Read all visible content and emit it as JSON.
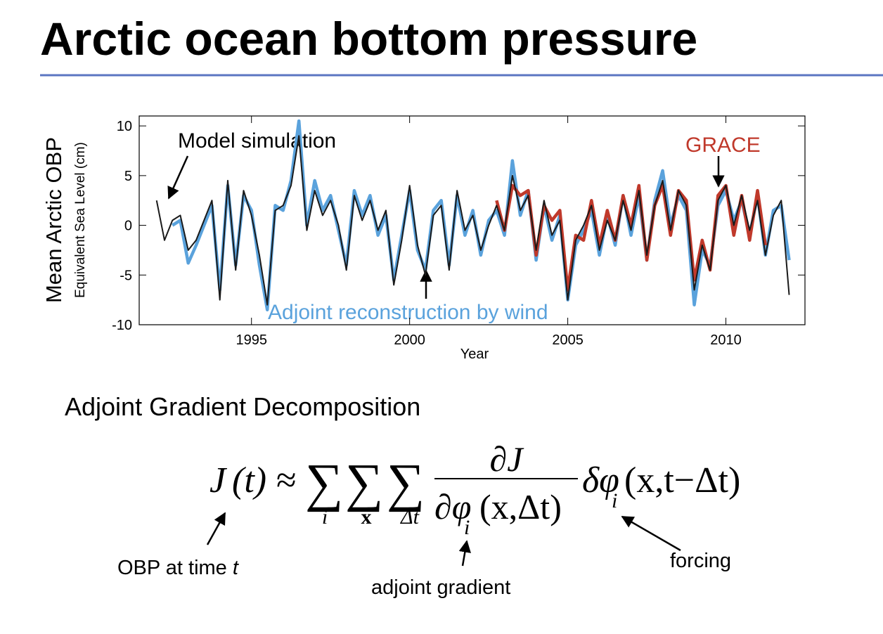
{
  "slide": {
    "title": "Arctic ocean bottom pressure",
    "subtitle": "Adjoint Gradient Decomposition",
    "equation": {
      "lhs": "J",
      "lhs_arg": "(t)",
      "approx": "≈",
      "sum": "∑",
      "sub_1": "i",
      "sub_2": "x",
      "sub_3": "Δt",
      "numerator": "∂J",
      "denominator": "∂φ",
      "denominator_sub": "i",
      "denominator_arg": "(x,Δt)",
      "forcing": "δφ",
      "forcing_sub": "i",
      "forcing_arg": "(x,t−Δt)"
    },
    "labels": {
      "obp": "OBP at time",
      "obp_t": "t",
      "gradient": "adjoint gradient",
      "forcing": "forcing"
    }
  },
  "chart_data": {
    "type": "line",
    "y_label": "Mean Arctic OBP",
    "y_sublabel": "Equivalent Sea Level (cm)",
    "x_label": "Year",
    "annotations": [
      "Model simulation",
      "GRACE",
      "Adjoint reconstruction by wind"
    ],
    "xlim": [
      1991.45,
      2012.5
    ],
    "xticks": [
      1995,
      2000,
      2005,
      2010
    ],
    "ylim": [
      -10,
      11
    ],
    "yticks": [
      -10,
      -5,
      0,
      5,
      10
    ],
    "x": [
      1992.0,
      1992.25,
      1992.5,
      1992.75,
      1993.0,
      1993.25,
      1993.5,
      1993.75,
      1994.0,
      1994.25,
      1994.5,
      1994.75,
      1995.0,
      1995.25,
      1995.5,
      1995.75,
      1996.0,
      1996.25,
      1996.5,
      1996.75,
      1997.0,
      1997.25,
      1997.5,
      1997.75,
      1998.0,
      1998.25,
      1998.5,
      1998.75,
      1999.0,
      1999.25,
      1999.5,
      1999.75,
      2000.0,
      2000.25,
      2000.5,
      2000.75,
      2001.0,
      2001.25,
      2001.5,
      2001.75,
      2002.0,
      2002.25,
      2002.5,
      2002.75,
      2003.0,
      2003.25,
      2003.5,
      2003.75,
      2004.0,
      2004.25,
      2004.5,
      2004.75,
      2005.0,
      2005.25,
      2005.5,
      2005.75,
      2006.0,
      2006.25,
      2006.5,
      2006.75,
      2007.0,
      2007.25,
      2007.5,
      2007.75,
      2008.0,
      2008.25,
      2008.5,
      2008.75,
      2009.0,
      2009.25,
      2009.5,
      2009.75,
      2010.0,
      2010.25,
      2010.5,
      2010.75,
      2011.0,
      2011.25,
      2011.5,
      2011.75,
      2012.0
    ],
    "series": [
      {
        "color": "#5aa2dc",
        "width": 4.5,
        "values": [
          null,
          null,
          0.0,
          0.5,
          -3.8,
          -2.0,
          0.0,
          2.0,
          -6.5,
          4.0,
          -4.0,
          3.0,
          1.5,
          -4.0,
          -8.5,
          2.0,
          1.5,
          4.5,
          10.5,
          0.0,
          4.5,
          1.5,
          3.0,
          -0.5,
          -4.0,
          3.5,
          1.0,
          3.0,
          -1.0,
          1.0,
          -5.5,
          -1.0,
          3.5,
          -2.5,
          -4.5,
          1.5,
          2.5,
          -4.0,
          3.0,
          -1.0,
          1.5,
          -3.0,
          0.5,
          1.5,
          -1.0,
          6.5,
          1.0,
          3.5,
          -3.5,
          2.0,
          -1.5,
          1.0,
          -7.5,
          -2.0,
          -0.5,
          1.5,
          -3.0,
          1.0,
          -2.0,
          3.0,
          -1.0,
          3.0,
          -3.5,
          2.5,
          5.5,
          0.0,
          3.0,
          1.5,
          -8.0,
          -2.5,
          -4.0,
          2.0,
          3.5,
          0.5,
          2.5,
          -1.0,
          3.0,
          -3.0,
          1.5,
          2.0,
          -3.5
        ]
      },
      {
        "color": "#c0392b",
        "width": 4.5,
        "values": [
          null,
          null,
          null,
          null,
          null,
          null,
          null,
          null,
          null,
          null,
          null,
          null,
          null,
          null,
          null,
          null,
          null,
          null,
          null,
          null,
          null,
          null,
          null,
          null,
          null,
          null,
          null,
          null,
          null,
          null,
          null,
          null,
          null,
          null,
          null,
          null,
          null,
          null,
          null,
          null,
          null,
          null,
          null,
          2.5,
          -0.5,
          4.0,
          3.0,
          3.5,
          -3.0,
          2.0,
          0.5,
          1.5,
          -6.5,
          -1.0,
          -1.5,
          2.5,
          -2.0,
          1.5,
          -1.5,
          3.0,
          0.0,
          4.0,
          -3.5,
          2.0,
          4.0,
          -1.0,
          3.5,
          2.5,
          -5.5,
          -1.5,
          -4.5,
          3.0,
          4.0,
          -1.0,
          3.0,
          -1.5,
          3.5,
          -2.0,
          null,
          null,
          null
        ]
      },
      {
        "color": "#1a1a1a",
        "width": 2,
        "values": [
          2.5,
          -1.5,
          0.5,
          1.0,
          -2.5,
          -1.5,
          0.5,
          2.5,
          -7.5,
          4.5,
          -4.5,
          3.5,
          1.0,
          -3.0,
          -8.0,
          1.5,
          2.0,
          4.0,
          9.0,
          -0.5,
          3.5,
          1.0,
          2.5,
          0.0,
          -4.5,
          3.0,
          0.5,
          2.5,
          -0.5,
          1.5,
          -6.0,
          -1.5,
          4.0,
          -2.0,
          -5.0,
          1.0,
          2.0,
          -4.5,
          3.5,
          -0.5,
          1.0,
          -2.5,
          0.0,
          2.0,
          -0.5,
          5.0,
          1.5,
          3.0,
          -2.5,
          2.5,
          -1.0,
          0.5,
          -7.5,
          -1.5,
          0.0,
          2.0,
          -2.5,
          0.5,
          -1.5,
          2.5,
          -0.5,
          3.5,
          -3.0,
          2.0,
          4.5,
          -0.5,
          3.5,
          2.0,
          -6.5,
          -2.0,
          -4.5,
          2.5,
          4.0,
          0.0,
          3.0,
          -0.5,
          2.5,
          -3.0,
          1.0,
          2.5,
          -7.0
        ]
      }
    ]
  }
}
